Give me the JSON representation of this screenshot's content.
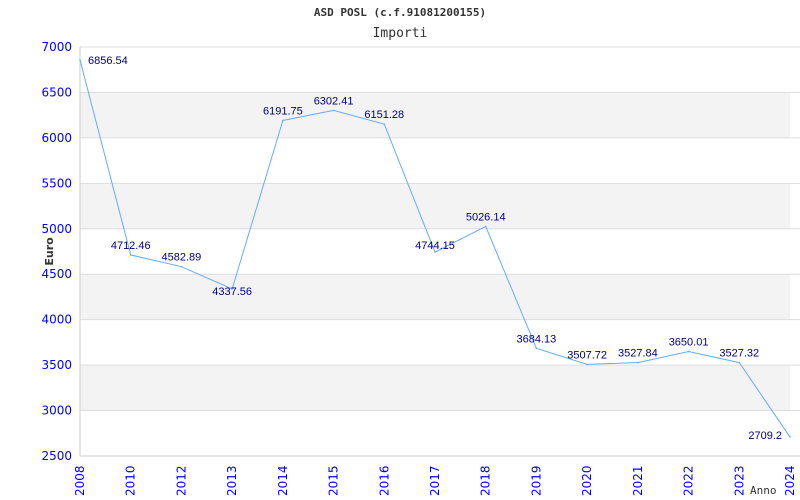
{
  "chart_data": {
    "type": "line",
    "title": "ASD POSL (c.f.91081200155)",
    "subtitle": "Importi",
    "xlabel": "Anno",
    "ylabel": "Euro",
    "ylim": [
      2500,
      7000
    ],
    "yticks": [
      "7000",
      "6500",
      "6000",
      "5500",
      "5000",
      "4500",
      "4000",
      "3500",
      "3000",
      "2500"
    ],
    "ytick_values": [
      7000,
      6500,
      6000,
      5500,
      5000,
      4500,
      4000,
      3500,
      3000,
      2500
    ],
    "categories": [
      "2008",
      "2010",
      "2012",
      "2013",
      "2014",
      "2015",
      "2016",
      "2017",
      "2018",
      "2019",
      "2020",
      "2021",
      "2022",
      "2023",
      "2024"
    ],
    "values": [
      6856.54,
      4712.46,
      4582.89,
      4337.56,
      6191.75,
      6302.41,
      6151.28,
      4744.15,
      5026.14,
      3684.13,
      3507.72,
      3527.84,
      3650.01,
      3527.32,
      2709.2
    ],
    "labels": [
      "6856.54",
      "4712.46",
      "4582.89",
      "4337.56",
      "6191.75",
      "6302.41",
      "6151.28",
      "4744.15",
      "5026.14",
      "3684.13",
      "3507.72",
      "3527.84",
      "3650.01",
      "3527.32",
      "2709.2"
    ],
    "grid": true,
    "colors": {
      "line": "#66aaff",
      "tick": "#0000ff",
      "label": "#000080",
      "grid": "#dddddd",
      "band": "#f3f3f3"
    }
  }
}
